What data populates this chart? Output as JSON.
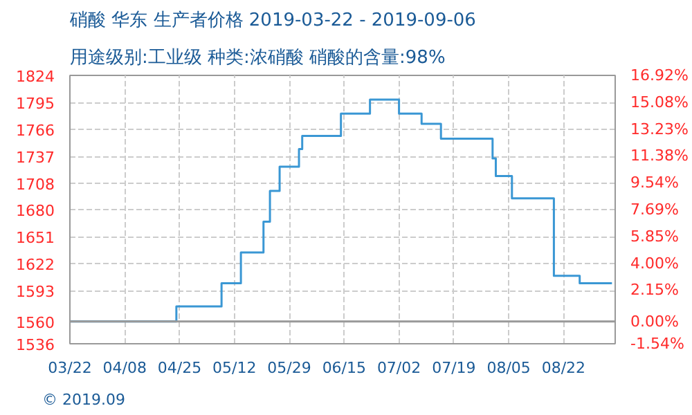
{
  "chart_data": {
    "type": "step",
    "title": "硝酸 华东 生产者价格 2019-03-22 - 2019-09-06",
    "subtitle": "用途级别:工业级 种类:浓硝酸 硝酸的含量:98%",
    "annotations": [
      "© 2019.09"
    ],
    "x": [
      "2019-03-22",
      "2019-04-24",
      "2019-05-08",
      "2019-05-14",
      "2019-05-21",
      "2019-05-23",
      "2019-05-26",
      "2019-06-01",
      "2019-06-02",
      "2019-06-14",
      "2019-06-23",
      "2019-07-02",
      "2019-07-09",
      "2019-07-15",
      "2019-07-31",
      "2019-08-01",
      "2019-08-06",
      "2019-08-19",
      "2019-08-27",
      "2019-09-06"
    ],
    "series": [
      {
        "color": "#3a97d4",
        "values": [
          1560,
          1576,
          1601,
          1634,
          1667,
          1700,
          1726,
          1745,
          1759,
          1783,
          1798,
          1783,
          1772,
          1756,
          1735,
          1716,
          1692,
          1609,
          1601,
          1601
        ]
      }
    ],
    "xlim": [
      "2019-03-22",
      "2019-09-07"
    ],
    "xticks": [
      {
        "value": "2019-03-22",
        "label": "03/22"
      },
      {
        "value": "2019-04-08",
        "label": "04/08"
      },
      {
        "value": "2019-04-25",
        "label": "04/25"
      },
      {
        "value": "2019-05-12",
        "label": "05/12"
      },
      {
        "value": "2019-05-29",
        "label": "05/29"
      },
      {
        "value": "2019-06-15",
        "label": "06/15"
      },
      {
        "value": "2019-07-02",
        "label": "07/02"
      },
      {
        "value": "2019-07-19",
        "label": "07/19"
      },
      {
        "value": "2019-08-05",
        "label": "08/05"
      },
      {
        "value": "2019-08-22",
        "label": "08/22"
      }
    ],
    "ylim": [
      1536,
      1824
    ],
    "yticks": [
      1536,
      1560,
      1593,
      1622,
      1651,
      1680,
      1708,
      1737,
      1766,
      1795,
      1824
    ],
    "y2lim": [
      -1.54,
      16.92
    ],
    "y2ticks": [
      {
        "value": -1.54,
        "label": "-1.54%"
      },
      {
        "value": 0,
        "label": "0.00%"
      },
      {
        "value": 2.15,
        "label": "2.15%"
      },
      {
        "value": 4.0,
        "label": "4.00%"
      },
      {
        "value": 5.85,
        "label": "5.85%"
      },
      {
        "value": 7.69,
        "label": "7.69%"
      },
      {
        "value": 9.54,
        "label": "9.54%"
      },
      {
        "value": 11.38,
        "label": "11.38%"
      },
      {
        "value": 13.23,
        "label": "13.23%"
      },
      {
        "value": 15.08,
        "label": "15.08%"
      },
      {
        "value": 16.92,
        "label": "16.92%"
      }
    ],
    "ref_lines": [
      {
        "axis": "y",
        "value": 1560,
        "color": "#999999",
        "line_style": "solid"
      }
    ],
    "grid": true
  }
}
